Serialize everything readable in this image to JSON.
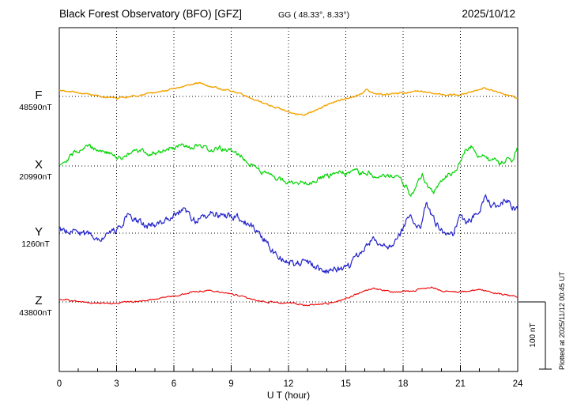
{
  "chart_data": {
    "type": "line",
    "title": "Black Forest Observatory (BFO)  [GFZ]",
    "subtitle": "GG ( 48.33°,  8.33°)",
    "date": "2025/10/12",
    "xlabel": "U T (hour)",
    "x_range": [
      0,
      24
    ],
    "x_ticks": [
      0,
      3,
      6,
      9,
      12,
      15,
      18,
      21,
      24
    ],
    "grid": "dotted vertical at 3h intervals, dotted baseline per channel",
    "scalebar": {
      "label": "100 nT",
      "nT": 100
    },
    "plotted_at": "Plotted at 2025/11/12 00:45 UT",
    "series": [
      {
        "name": "F",
        "base_value_label": "48590nT",
        "color": "#f5a400",
        "noise_nT": 1.2,
        "points_nT_offset": [
          [
            0,
            9
          ],
          [
            0.7,
            7
          ],
          [
            1.3,
            4
          ],
          [
            2,
            1
          ],
          [
            2.6,
            -2
          ],
          [
            3,
            -3
          ],
          [
            3.5,
            -1
          ],
          [
            4,
            1
          ],
          [
            4.6,
            4
          ],
          [
            5.2,
            7
          ],
          [
            6,
            11
          ],
          [
            6.6,
            15
          ],
          [
            7,
            19
          ],
          [
            7.4,
            20
          ],
          [
            7.8,
            16
          ],
          [
            8.3,
            12
          ],
          [
            9,
            8
          ],
          [
            9.6,
            3
          ],
          [
            10.2,
            -4
          ],
          [
            11,
            -13
          ],
          [
            11.7,
            -20
          ],
          [
            12.3,
            -26
          ],
          [
            12.8,
            -27
          ],
          [
            13.3,
            -22
          ],
          [
            14,
            -13
          ],
          [
            14.6,
            -7
          ],
          [
            15.2,
            -2
          ],
          [
            15.8,
            3
          ],
          [
            16.1,
            11
          ],
          [
            16.4,
            5
          ],
          [
            17,
            3
          ],
          [
            17.6,
            4
          ],
          [
            18.2,
            6
          ],
          [
            18.8,
            8
          ],
          [
            19.4,
            6
          ],
          [
            20,
            3
          ],
          [
            20.7,
            2
          ],
          [
            21.2,
            4
          ],
          [
            21.8,
            8
          ],
          [
            22.2,
            12
          ],
          [
            22.6,
            10
          ],
          [
            23.1,
            5
          ],
          [
            23.6,
            1
          ],
          [
            24,
            -2
          ]
        ]
      },
      {
        "name": "X",
        "base_value_label": "20990nT",
        "color": "#00d400",
        "noise_nT": 3.5,
        "points_nT_offset": [
          [
            0,
            4
          ],
          [
            0.4,
            10
          ],
          [
            0.8,
            20
          ],
          [
            1.2,
            27
          ],
          [
            1.6,
            30
          ],
          [
            2,
            25
          ],
          [
            2.4,
            21
          ],
          [
            2.8,
            16
          ],
          [
            3.1,
            11
          ],
          [
            3.5,
            16
          ],
          [
            3.9,
            21
          ],
          [
            4.3,
            23
          ],
          [
            4.7,
            17
          ],
          [
            5.1,
            20
          ],
          [
            5.5,
            24
          ],
          [
            6,
            27
          ],
          [
            6.4,
            30
          ],
          [
            6.8,
            26
          ],
          [
            7.2,
            29
          ],
          [
            7.6,
            27
          ],
          [
            8,
            23
          ],
          [
            8.4,
            26
          ],
          [
            8.8,
            24
          ],
          [
            9.2,
            20
          ],
          [
            9.6,
            13
          ],
          [
            10,
            4
          ],
          [
            10.5,
            -6
          ],
          [
            11,
            -14
          ],
          [
            11.5,
            -20
          ],
          [
            12,
            -24
          ],
          [
            12.4,
            -26
          ],
          [
            12.8,
            -23
          ],
          [
            13.2,
            -24
          ],
          [
            13.6,
            -19
          ],
          [
            14,
            -16
          ],
          [
            14.4,
            -12
          ],
          [
            14.8,
            -9
          ],
          [
            15.1,
            -14
          ],
          [
            15.4,
            -6
          ],
          [
            15.8,
            -12
          ],
          [
            16.2,
            -10
          ],
          [
            16.6,
            -15
          ],
          [
            17,
            -12
          ],
          [
            17.4,
            -16
          ],
          [
            17.8,
            -18
          ],
          [
            18.1,
            -28
          ],
          [
            18.4,
            -44
          ],
          [
            18.7,
            -30
          ],
          [
            19,
            -14
          ],
          [
            19.3,
            -30
          ],
          [
            19.6,
            -38
          ],
          [
            19.9,
            -26
          ],
          [
            20.3,
            -14
          ],
          [
            20.7,
            -10
          ],
          [
            21,
            8
          ],
          [
            21.3,
            25
          ],
          [
            21.6,
            30
          ],
          [
            21.9,
            12
          ],
          [
            22.2,
            18
          ],
          [
            22.5,
            8
          ],
          [
            22.8,
            14
          ],
          [
            23.1,
            4
          ],
          [
            23.4,
            10
          ],
          [
            23.7,
            6
          ],
          [
            24,
            30
          ]
        ]
      },
      {
        "name": "Y",
        "base_value_label": "1260nT",
        "color": "#2424cc",
        "noise_nT": 5,
        "points_nT_offset": [
          [
            0,
            6
          ],
          [
            0.5,
            4
          ],
          [
            1,
            1
          ],
          [
            1.5,
            -3
          ],
          [
            2,
            -6
          ],
          [
            2.5,
            -3
          ],
          [
            3,
            4
          ],
          [
            3.3,
            16
          ],
          [
            3.6,
            27
          ],
          [
            3.9,
            20
          ],
          [
            4.3,
            14
          ],
          [
            4.7,
            11
          ],
          [
            5.1,
            14
          ],
          [
            5.5,
            19
          ],
          [
            5.9,
            24
          ],
          [
            6.3,
            32
          ],
          [
            6.6,
            36
          ],
          [
            6.9,
            22
          ],
          [
            7.2,
            18
          ],
          [
            7.6,
            25
          ],
          [
            8,
            31
          ],
          [
            8.4,
            27
          ],
          [
            8.8,
            25
          ],
          [
            9.2,
            26
          ],
          [
            9.6,
            20
          ],
          [
            10,
            13
          ],
          [
            10.4,
            2
          ],
          [
            10.8,
            -12
          ],
          [
            11.2,
            -28
          ],
          [
            11.6,
            -36
          ],
          [
            12,
            -42
          ],
          [
            12.4,
            -46
          ],
          [
            12.8,
            -43
          ],
          [
            13.2,
            -47
          ],
          [
            13.6,
            -54
          ],
          [
            14,
            -57
          ],
          [
            14.4,
            -56
          ],
          [
            14.8,
            -53
          ],
          [
            15.2,
            -48
          ],
          [
            15.6,
            -34
          ],
          [
            16,
            -20
          ],
          [
            16.4,
            -10
          ],
          [
            16.8,
            -14
          ],
          [
            17.2,
            -18
          ],
          [
            17.6,
            -10
          ],
          [
            18,
            4
          ],
          [
            18.3,
            28
          ],
          [
            18.6,
            14
          ],
          [
            18.9,
            8
          ],
          [
            19.2,
            46
          ],
          [
            19.5,
            24
          ],
          [
            19.8,
            12
          ],
          [
            20.2,
            2
          ],
          [
            20.6,
            -2
          ],
          [
            21,
            28
          ],
          [
            21.3,
            16
          ],
          [
            21.6,
            22
          ],
          [
            22,
            34
          ],
          [
            22.3,
            52
          ],
          [
            22.6,
            42
          ],
          [
            23,
            40
          ],
          [
            23.3,
            48
          ],
          [
            23.6,
            44
          ],
          [
            24,
            34
          ]
        ]
      },
      {
        "name": "Z",
        "base_value_label": "43800nT",
        "color": "#ee0000",
        "noise_nT": 1.2,
        "points_nT_offset": [
          [
            0,
            5
          ],
          [
            0.6,
            2
          ],
          [
            1.2,
            0
          ],
          [
            1.8,
            -2
          ],
          [
            2.4,
            -2
          ],
          [
            3,
            -1
          ],
          [
            3.6,
            0
          ],
          [
            4.2,
            1
          ],
          [
            4.8,
            3
          ],
          [
            5.4,
            6
          ],
          [
            6,
            9
          ],
          [
            6.6,
            12
          ],
          [
            7,
            15
          ],
          [
            7.5,
            16
          ],
          [
            8,
            17
          ],
          [
            8.5,
            15
          ],
          [
            9,
            12
          ],
          [
            9.5,
            9
          ],
          [
            10,
            5
          ],
          [
            10.5,
            2
          ],
          [
            11,
            0
          ],
          [
            11.5,
            -1
          ],
          [
            12,
            -1
          ],
          [
            12.5,
            -3
          ],
          [
            13,
            -5
          ],
          [
            13.5,
            -4
          ],
          [
            14,
            -3
          ],
          [
            14.5,
            0
          ],
          [
            15,
            5
          ],
          [
            15.5,
            11
          ],
          [
            16,
            16
          ],
          [
            16.5,
            20
          ],
          [
            17,
            17
          ],
          [
            17.5,
            15
          ],
          [
            18,
            15
          ],
          [
            18.5,
            16
          ],
          [
            19,
            20
          ],
          [
            19.5,
            22
          ],
          [
            20,
            17
          ],
          [
            20.5,
            15
          ],
          [
            21,
            15
          ],
          [
            21.5,
            17
          ],
          [
            22,
            19
          ],
          [
            22.5,
            15
          ],
          [
            23,
            12
          ],
          [
            23.5,
            10
          ],
          [
            24,
            8
          ]
        ]
      }
    ]
  }
}
